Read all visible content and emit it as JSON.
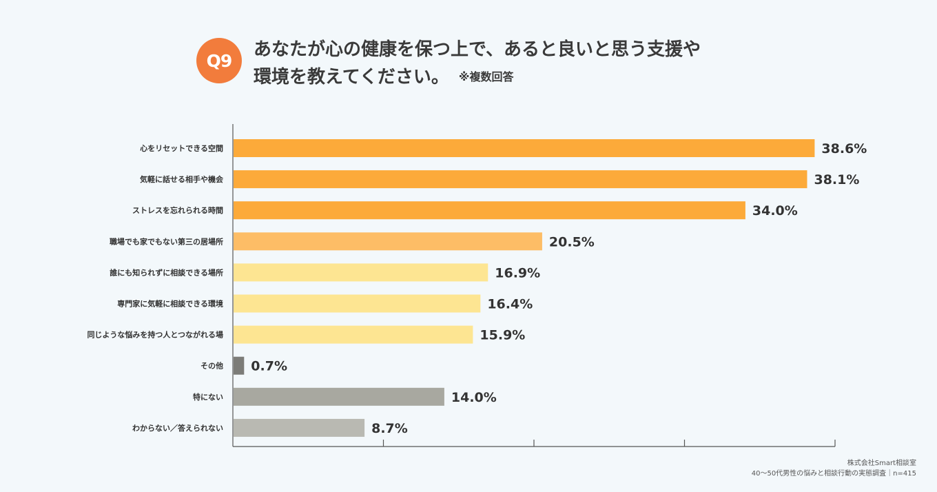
{
  "question": {
    "badge": "Q9",
    "title_line1": "あなたが心の健康を保つ上で、あると良いと思う支援や",
    "title_line2": "環境を教えてください。",
    "note": "※複数回答"
  },
  "source": {
    "company": "株式会社Smart相談室",
    "survey": "40〜50代男性の悩みと相談行動の実態調査｜n=415"
  },
  "chart_data": {
    "type": "bar",
    "orientation": "horizontal",
    "categories": [
      "心をリセットできる空間",
      "気軽に話せる相手や機会",
      "ストレスを忘れられる時間",
      "職場でも家でもない第三の居場所",
      "誰にも知られずに相談できる場所",
      "専門家に気軽に相談できる環境",
      "同じような悩みを持つ人とつながれる場",
      "その他",
      "特にない",
      "わからない／答えられない"
    ],
    "values": [
      38.6,
      38.1,
      34.0,
      20.5,
      16.9,
      16.4,
      15.9,
      0.7,
      14.0,
      8.7
    ],
    "value_labels": [
      "38.6%",
      "38.1%",
      "34.0%",
      "20.5%",
      "16.9%",
      "16.4%",
      "15.9%",
      "0.7%",
      "14.0%",
      "8.7%"
    ],
    "colors": [
      "#fcaa3a",
      "#fcaa3a",
      "#fcaa3a",
      "#fdbd66",
      "#fde592",
      "#fde592",
      "#fde592",
      "#7c7c78",
      "#a8a8a0",
      "#b9b9b2"
    ],
    "xlim": [
      0,
      40
    ],
    "grid": false,
    "legend": "none"
  }
}
